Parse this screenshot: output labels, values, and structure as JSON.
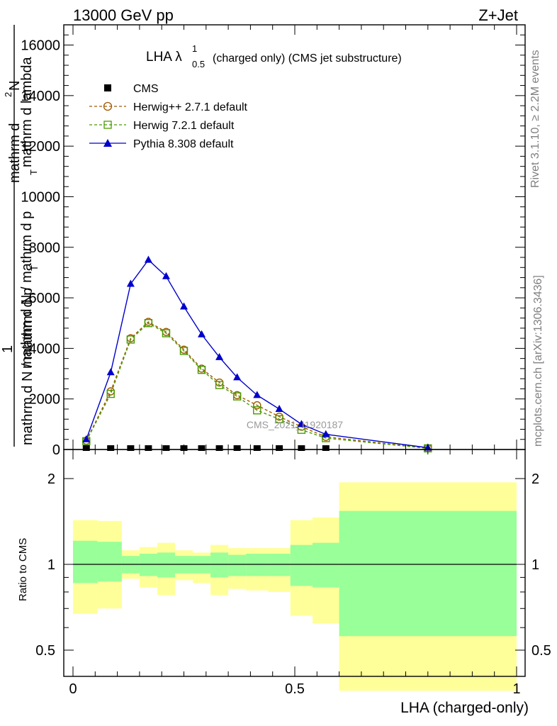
{
  "header": {
    "left": "13000 GeV pp",
    "right": "Z+Jet"
  },
  "side": {
    "rivet": "Rivet 3.1.10, ≥ 2.2M events",
    "mcplots": "mcplots.cern.ch [arXiv:1306.3436]"
  },
  "chart_data": [
    {
      "type": "line",
      "title": "LHA λ",
      "title_sup": "1",
      "title_sub": "0.5",
      "title_rest": "(charged only) (CMS jet substructure)",
      "ylabel_line1": "mathrm d N / mathrm d p",
      "ylabel_line1_sub": "T",
      "ylabel_line1_rest": "mathrm d lambda",
      "ylabel_line2": "mathrm d N / mathrm d p",
      "ylabel_line2_sub": "T",
      "ylabel_frac_top_top": "mathrm d",
      "ylabel_frac_top_sup": "2",
      "ylabel_frac_top_rest": "N",
      "ylabel_one": "1",
      "watermark": "CMS_2021_I1920187",
      "xlim": [
        0,
        1
      ],
      "ylim": [
        0,
        16800
      ],
      "yticks": [
        {
          "v": 0,
          "label": "0"
        },
        {
          "v": 2000,
          "label": "2000"
        },
        {
          "v": 4000,
          "label": "4000"
        },
        {
          "v": 6000,
          "label": "6000"
        },
        {
          "v": 8000,
          "label": "8000"
        },
        {
          "v": 10000,
          "label": "10000"
        },
        {
          "v": 12000,
          "label": "12000"
        },
        {
          "v": 14000,
          "label": "14000"
        },
        {
          "v": 16000,
          "label": "16000"
        }
      ],
      "legend_position": "top-left",
      "series": [
        {
          "name": "CMS",
          "color": "#000000",
          "marker": "filled-square",
          "x": [
            0.03,
            0.085,
            0.13,
            0.17,
            0.21,
            0.25,
            0.29,
            0.33,
            0.37,
            0.415,
            0.465,
            0.515,
            0.57
          ],
          "y": [
            0,
            0,
            0,
            0,
            0,
            0,
            0,
            0,
            0,
            0,
            0,
            0,
            0
          ]
        },
        {
          "name": "Herwig++ 2.7.1 default",
          "color": "#a05a00",
          "marker": "open-circle",
          "x": [
            0.03,
            0.085,
            0.13,
            0.17,
            0.21,
            0.25,
            0.29,
            0.33,
            0.37,
            0.415,
            0.465,
            0.515,
            0.57,
            0.8
          ],
          "y": [
            350,
            2300,
            4400,
            5050,
            4650,
            3950,
            3200,
            2650,
            2150,
            1750,
            1300,
            900,
            500,
            50
          ]
        },
        {
          "name": "Herwig 7.2.1 default",
          "color": "#4a9a00",
          "marker": "open-square",
          "x": [
            0.03,
            0.085,
            0.13,
            0.17,
            0.21,
            0.25,
            0.29,
            0.33,
            0.37,
            0.415,
            0.465,
            0.515,
            0.57,
            0.8
          ],
          "y": [
            330,
            2200,
            4350,
            5000,
            4600,
            3900,
            3150,
            2550,
            2100,
            1550,
            1200,
            780,
            450,
            45
          ]
        },
        {
          "name": "Pythia 8.308 default",
          "color": "#0000cc",
          "marker": "filled-triangle",
          "x": [
            0.03,
            0.085,
            0.13,
            0.17,
            0.21,
            0.25,
            0.29,
            0.33,
            0.37,
            0.415,
            0.465,
            0.515,
            0.57,
            0.8
          ],
          "y": [
            400,
            3050,
            6550,
            7500,
            6850,
            5650,
            4550,
            3650,
            2850,
            2150,
            1600,
            1000,
            600,
            70
          ]
        }
      ]
    },
    {
      "type": "area",
      "ylabel": "Ratio to CMS",
      "xlabel": "LHA (charged-only)",
      "xlim": [
        0,
        1
      ],
      "ylim": [
        0.35,
        2.3
      ],
      "xticks": [
        {
          "v": 0,
          "label": "0"
        },
        {
          "v": 0.5,
          "label": "0.5"
        },
        {
          "v": 1,
          "label": "1"
        }
      ],
      "yticks": [
        {
          "v": 0.5,
          "label": "0.5"
        },
        {
          "v": 1,
          "label": "1"
        },
        {
          "v": 2,
          "label": "2"
        }
      ],
      "band_colors": {
        "outer": "#ffff99",
        "inner": "#99ff99",
        "line": "#000000"
      },
      "bins": [
        {
          "x0": 0.0,
          "x1": 0.055,
          "outer": [
            0.67,
            1.43
          ],
          "inner": [
            0.86,
            1.21
          ]
        },
        {
          "x0": 0.055,
          "x1": 0.11,
          "outer": [
            0.7,
            1.42
          ],
          "inner": [
            0.87,
            1.2
          ]
        },
        {
          "x0": 0.11,
          "x1": 0.15,
          "outer": [
            0.89,
            1.12
          ],
          "inner": [
            0.93,
            1.07
          ]
        },
        {
          "x0": 0.15,
          "x1": 0.19,
          "outer": [
            0.83,
            1.15
          ],
          "inner": [
            0.91,
            1.09
          ]
        },
        {
          "x0": 0.19,
          "x1": 0.23,
          "outer": [
            0.78,
            1.19
          ],
          "inner": [
            0.9,
            1.1
          ]
        },
        {
          "x0": 0.23,
          "x1": 0.27,
          "outer": [
            0.88,
            1.12
          ],
          "inner": [
            0.93,
            1.07
          ]
        },
        {
          "x0": 0.27,
          "x1": 0.31,
          "outer": [
            0.86,
            1.1
          ],
          "inner": [
            0.93,
            1.07
          ]
        },
        {
          "x0": 0.31,
          "x1": 0.35,
          "outer": [
            0.78,
            1.17
          ],
          "inner": [
            0.9,
            1.1
          ]
        },
        {
          "x0": 0.35,
          "x1": 0.39,
          "outer": [
            0.82,
            1.14
          ],
          "inner": [
            0.91,
            1.08
          ]
        },
        {
          "x0": 0.39,
          "x1": 0.44,
          "outer": [
            0.81,
            1.14
          ],
          "inner": [
            0.91,
            1.09
          ]
        },
        {
          "x0": 0.44,
          "x1": 0.49,
          "outer": [
            0.8,
            1.14
          ],
          "inner": [
            0.91,
            1.09
          ]
        },
        {
          "x0": 0.49,
          "x1": 0.54,
          "outer": [
            0.66,
            1.43
          ],
          "inner": [
            0.84,
            1.17
          ]
        },
        {
          "x0": 0.54,
          "x1": 0.6,
          "outer": [
            0.62,
            1.46
          ],
          "inner": [
            0.83,
            1.19
          ]
        },
        {
          "x0": 0.6,
          "x1": 1.0,
          "outer": [
            0.36,
            1.94
          ],
          "inner": [
            0.56,
            1.54
          ]
        }
      ]
    }
  ]
}
